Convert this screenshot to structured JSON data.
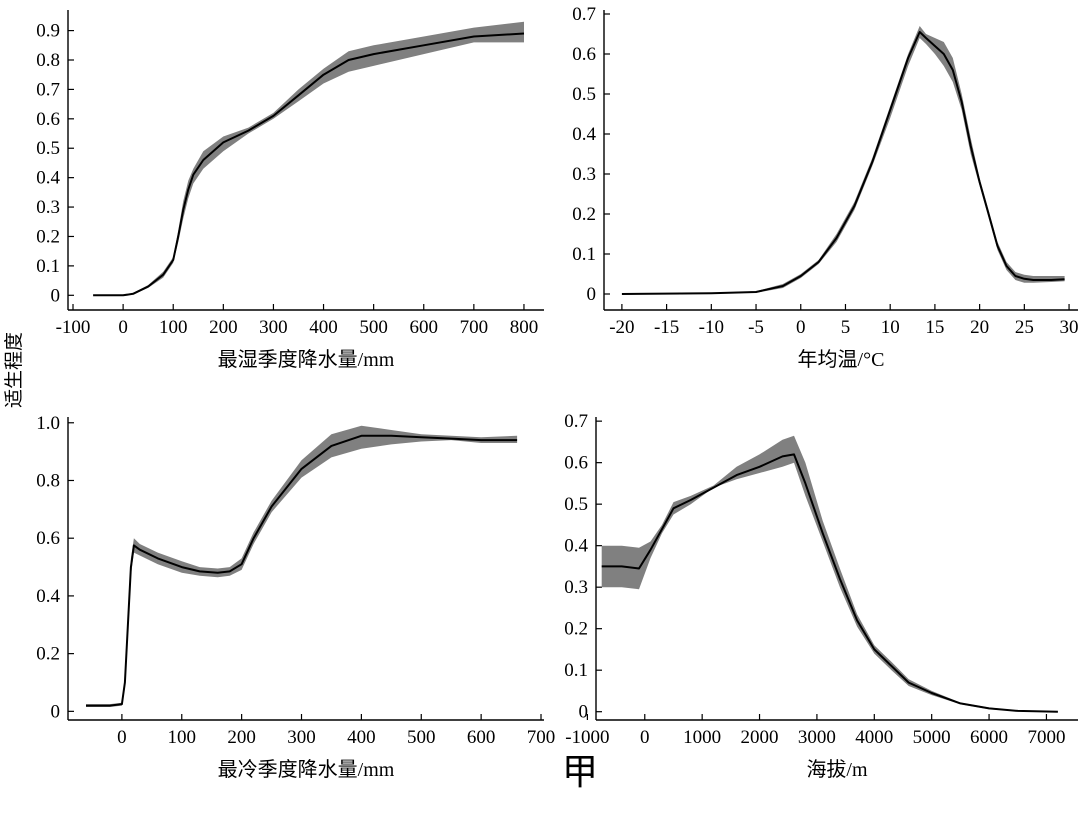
{
  "figure_label": "甲",
  "shared_ylabel": "适生程度",
  "chart_data": [
    {
      "type": "line",
      "xlabel": "最湿季度降水量/mm",
      "ylabel": "适生程度",
      "xlim": [
        -110,
        840
      ],
      "ylim": [
        -0.05,
        0.97
      ],
      "xticks": [
        -100,
        0,
        100,
        200,
        300,
        400,
        500,
        600,
        700,
        800
      ],
      "yticks": [
        0,
        0.1,
        0.2,
        0.3,
        0.4,
        0.5,
        0.6,
        0.7,
        0.8,
        0.9
      ],
      "xtick_labels": [
        "-100",
        "0",
        "100",
        "200",
        "300",
        "400",
        "500",
        "600",
        "700",
        "800"
      ],
      "ytick_labels": [
        "0",
        "0.1",
        "0.2",
        "0.3",
        "0.4",
        "0.5",
        "0.6",
        "0.7",
        "0.8",
        "0.9"
      ],
      "series": [
        {
          "name": "mean",
          "x": [
            -60,
            0,
            20,
            50,
            80,
            100,
            110,
            120,
            130,
            140,
            160,
            200,
            250,
            300,
            350,
            400,
            450,
            500,
            600,
            700,
            800
          ],
          "y": [
            0,
            0,
            0.005,
            0.03,
            0.07,
            0.12,
            0.2,
            0.29,
            0.36,
            0.41,
            0.46,
            0.52,
            0.56,
            0.61,
            0.68,
            0.75,
            0.8,
            0.82,
            0.85,
            0.88,
            0.89
          ],
          "lower": [
            0,
            0,
            0.002,
            0.025,
            0.06,
            0.11,
            0.18,
            0.26,
            0.33,
            0.38,
            0.43,
            0.49,
            0.55,
            0.6,
            0.66,
            0.72,
            0.76,
            0.78,
            0.82,
            0.86,
            0.86
          ],
          "upper": [
            0,
            0,
            0.008,
            0.035,
            0.08,
            0.13,
            0.22,
            0.32,
            0.39,
            0.43,
            0.49,
            0.54,
            0.57,
            0.62,
            0.7,
            0.77,
            0.83,
            0.85,
            0.88,
            0.91,
            0.93
          ]
        }
      ]
    },
    {
      "type": "line",
      "xlabel": "年均温/°C",
      "ylabel": "适生程度",
      "xlim": [
        -22,
        31
      ],
      "ylim": [
        -0.04,
        0.71
      ],
      "xticks": [
        -20,
        -15,
        -10,
        -5,
        0,
        5,
        10,
        15,
        20,
        25,
        30
      ],
      "yticks": [
        0,
        0.1,
        0.2,
        0.3,
        0.4,
        0.5,
        0.6,
        0.7
      ],
      "xtick_labels": [
        "-20",
        "-15",
        "-10",
        "-5",
        "0",
        "5",
        "10",
        "15",
        "20",
        "25",
        "30"
      ],
      "ytick_labels": [
        "0",
        "0.1",
        "0.2",
        "0.3",
        "0.4",
        "0.5",
        "0.6",
        "0.7"
      ],
      "series": [
        {
          "name": "mean",
          "x": [
            -20,
            -10,
            -5,
            -2,
            0,
            2,
            4,
            6,
            8,
            10,
            12,
            13.3,
            14,
            15,
            16,
            17,
            18,
            19,
            20,
            21,
            22,
            23,
            24,
            25,
            26,
            28,
            29.5
          ],
          "y": [
            0,
            0.002,
            0.005,
            0.02,
            0.045,
            0.08,
            0.14,
            0.22,
            0.33,
            0.46,
            0.59,
            0.655,
            0.64,
            0.62,
            0.6,
            0.56,
            0.48,
            0.37,
            0.28,
            0.2,
            0.12,
            0.07,
            0.045,
            0.038,
            0.035,
            0.035,
            0.037
          ],
          "lower": [
            0,
            0.001,
            0.003,
            0.015,
            0.04,
            0.075,
            0.13,
            0.21,
            0.32,
            0.44,
            0.57,
            0.64,
            0.625,
            0.6,
            0.57,
            0.53,
            0.46,
            0.35,
            0.27,
            0.19,
            0.11,
            0.06,
            0.035,
            0.028,
            0.028,
            0.03,
            0.032
          ],
          "upper": [
            0,
            0.003,
            0.007,
            0.025,
            0.05,
            0.085,
            0.15,
            0.23,
            0.34,
            0.47,
            0.6,
            0.67,
            0.65,
            0.64,
            0.63,
            0.59,
            0.5,
            0.39,
            0.29,
            0.21,
            0.13,
            0.08,
            0.055,
            0.048,
            0.045,
            0.045,
            0.045
          ]
        }
      ]
    },
    {
      "type": "line",
      "xlabel": "最冷季度降水量/mm",
      "ylabel": "适生程度",
      "xlim": [
        -90,
        705
      ],
      "ylim": [
        -0.03,
        1.02
      ],
      "xticks": [
        0,
        100,
        200,
        300,
        400,
        500,
        600,
        700
      ],
      "yticks": [
        0,
        0.2,
        0.4,
        0.6,
        0.8,
        1.0
      ],
      "xtick_labels": [
        "0",
        "100",
        "200",
        "300",
        "400",
        "500",
        "600",
        "700"
      ],
      "ytick_labels": [
        "0",
        "0.2",
        "0.4",
        "0.6",
        "0.8",
        "1.0"
      ],
      "series": [
        {
          "name": "mean",
          "x": [
            -60,
            -20,
            0,
            5,
            10,
            15,
            20,
            30,
            60,
            100,
            130,
            160,
            180,
            200,
            220,
            250,
            300,
            350,
            400,
            450,
            500,
            550,
            600,
            660
          ],
          "y": [
            0.02,
            0.02,
            0.025,
            0.1,
            0.3,
            0.5,
            0.575,
            0.56,
            0.53,
            0.5,
            0.485,
            0.48,
            0.485,
            0.51,
            0.6,
            0.71,
            0.84,
            0.92,
            0.955,
            0.955,
            0.95,
            0.945,
            0.94,
            0.94
          ],
          "lower": [
            0.015,
            0.015,
            0.02,
            0.08,
            0.27,
            0.47,
            0.55,
            0.54,
            0.51,
            0.48,
            0.47,
            0.465,
            0.47,
            0.49,
            0.58,
            0.69,
            0.81,
            0.88,
            0.91,
            0.925,
            0.935,
            0.94,
            0.93,
            0.93
          ],
          "upper": [
            0.025,
            0.025,
            0.03,
            0.12,
            0.33,
            0.53,
            0.6,
            0.58,
            0.55,
            0.52,
            0.5,
            0.495,
            0.5,
            0.53,
            0.62,
            0.73,
            0.87,
            0.96,
            0.99,
            0.975,
            0.96,
            0.955,
            0.95,
            0.955
          ]
        }
      ]
    },
    {
      "type": "line",
      "xlabel": "海拔/m",
      "ylabel": "适生程度",
      "xlim": [
        -850,
        7550
      ],
      "ylim": [
        -0.02,
        0.71
      ],
      "xticks": [
        -1000,
        0,
        1000,
        2000,
        3000,
        4000,
        5000,
        6000,
        7000
      ],
      "yticks": [
        0,
        0.1,
        0.2,
        0.3,
        0.4,
        0.5,
        0.6,
        0.7
      ],
      "xtick_labels": [
        "-1000",
        "0",
        "1000",
        "2000",
        "3000",
        "4000",
        "5000",
        "6000",
        "7000"
      ],
      "ytick_labels": [
        "0",
        "0.1",
        "0.2",
        "0.3",
        "0.4",
        "0.5",
        "0.6",
        "0.7"
      ],
      "series": [
        {
          "name": "mean",
          "x": [
            -750,
            -400,
            -100,
            100,
            300,
            500,
            800,
            1200,
            1600,
            2000,
            2400,
            2600,
            2800,
            3100,
            3400,
            3700,
            4000,
            4300,
            4600,
            5000,
            5500,
            6000,
            6500,
            7200
          ],
          "y": [
            0.35,
            0.35,
            0.345,
            0.39,
            0.44,
            0.49,
            0.51,
            0.54,
            0.57,
            0.59,
            0.615,
            0.62,
            0.55,
            0.43,
            0.32,
            0.22,
            0.15,
            0.11,
            0.07,
            0.045,
            0.02,
            0.008,
            0.002,
            0
          ],
          "lower": [
            0.3,
            0.3,
            0.295,
            0.37,
            0.43,
            0.475,
            0.5,
            0.54,
            0.56,
            0.575,
            0.59,
            0.6,
            0.52,
            0.41,
            0.3,
            0.205,
            0.14,
            0.1,
            0.062,
            0.04,
            0.018,
            0.006,
            0.001,
            0
          ],
          "upper": [
            0.4,
            0.4,
            0.395,
            0.41,
            0.45,
            0.505,
            0.52,
            0.545,
            0.59,
            0.62,
            0.655,
            0.665,
            0.6,
            0.46,
            0.345,
            0.235,
            0.16,
            0.12,
            0.078,
            0.05,
            0.022,
            0.01,
            0.003,
            0
          ]
        }
      ]
    }
  ]
}
